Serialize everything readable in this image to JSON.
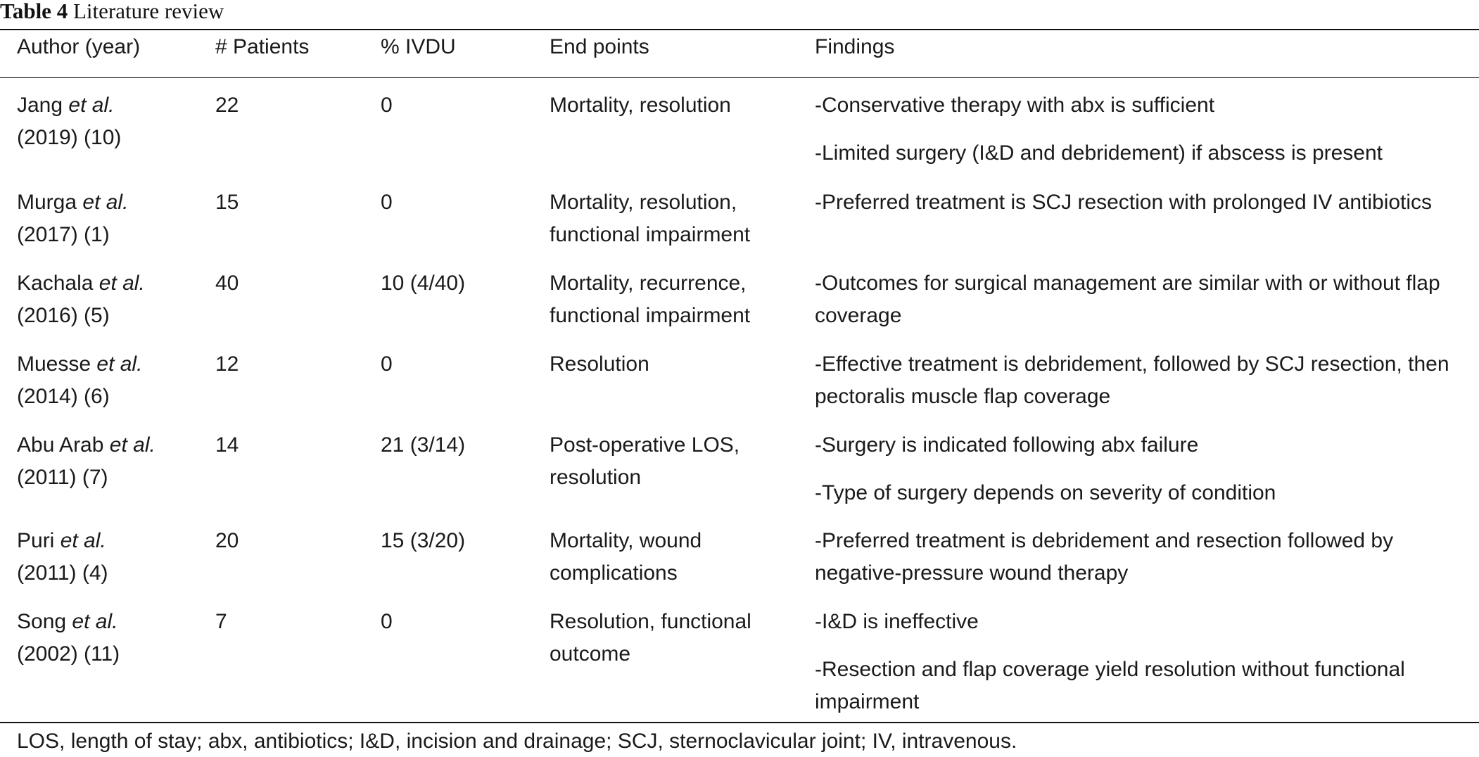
{
  "caption": {
    "label": "Table 4",
    "title": "Literature review"
  },
  "columns": [
    "Author (year)",
    "# Patients",
    "% IVDU",
    "End points",
    "Findings"
  ],
  "rows": [
    {
      "author": "Jang",
      "etal": "et al.",
      "year": "(2019) (10)",
      "patients": "22",
      "ivdu": "0",
      "endpoints": [
        "Mortality, resolution"
      ],
      "findings": [
        "-Conservative therapy with abx is sufficient",
        "-Limited surgery (I&D and debridement) if abscess is present"
      ]
    },
    {
      "author": "Murga",
      "etal": "et al.",
      "year": "(2017) (1)",
      "patients": "15",
      "ivdu": "0",
      "endpoints": [
        "Mortality, resolution,",
        "functional impairment"
      ],
      "findings": [
        "-Preferred treatment is SCJ resection with prolonged IV antibiotics"
      ]
    },
    {
      "author": "Kachala",
      "etal": "et al.",
      "year": "(2016) (5)",
      "patients": "40",
      "ivdu": "10 (4/40)",
      "endpoints": [
        "Mortality, recurrence,",
        "functional impairment"
      ],
      "findings": [
        "-Outcomes for surgical management are similar with or without flap coverage"
      ]
    },
    {
      "author": "Muesse",
      "etal": "et al.",
      "year": "(2014) (6)",
      "patients": "12",
      "ivdu": "0",
      "endpoints": [
        "Resolution"
      ],
      "findings": [
        "-Effective treatment is debridement, followed by SCJ resection, then pectoralis muscle flap coverage"
      ]
    },
    {
      "author": "Abu Arab",
      "etal": "et al.",
      "year": "(2011) (7)",
      "patients": "14",
      "ivdu": "21 (3/14)",
      "endpoints": [
        "Post-operative LOS,",
        "resolution"
      ],
      "findings": [
        "-Surgery is indicated following abx failure",
        "-Type of surgery depends on severity of condition"
      ]
    },
    {
      "author": "Puri",
      "etal": "et al.",
      "year": "(2011) (4)",
      "patients": "20",
      "ivdu": "15 (3/20)",
      "endpoints": [
        "Mortality, wound",
        "complications"
      ],
      "findings": [
        "-Preferred treatment is debridement and resection followed by negative-pressure wound therapy"
      ]
    },
    {
      "author": "Song",
      "etal": "et al.",
      "year": "(2002) (11)",
      "patients": "7",
      "ivdu": "0",
      "endpoints": [
        "Resolution, functional",
        "outcome"
      ],
      "findings": [
        "-I&D is ineffective",
        "-Resection and flap coverage yield resolution without functional impairment"
      ]
    }
  ],
  "footnote": "LOS, length of stay; abx, antibiotics; I&D, incision and drainage; SCJ, sternoclavicular joint; IV, intravenous."
}
